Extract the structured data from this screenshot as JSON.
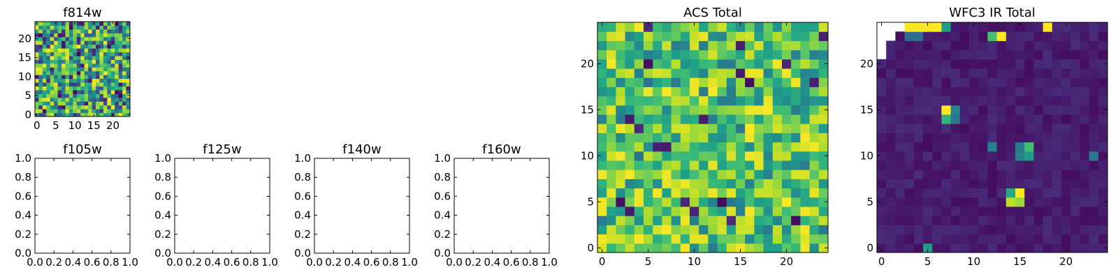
{
  "chart_data": [
    {
      "type": "heatmap",
      "title": "f814w",
      "colormap": "viridis",
      "grid_size": 25,
      "value_range": [
        0,
        1
      ],
      "xticks": [
        "0",
        "5",
        "10",
        "15",
        "20"
      ],
      "yticks": [
        "0",
        "5",
        "10",
        "15",
        "20"
      ],
      "pattern": "uniform random noise"
    },
    {
      "type": "table",
      "title": "f105w",
      "empty": true,
      "xticks": [
        "0.0",
        "0.2",
        "0.4",
        "0.6",
        "0.8",
        "1.0"
      ],
      "yticks": [
        "0.0",
        "0.2",
        "0.4",
        "0.6",
        "0.8",
        "1.0"
      ]
    },
    {
      "type": "table",
      "title": "f125w",
      "empty": true,
      "xticks": [
        "0.0",
        "0.2",
        "0.4",
        "0.6",
        "0.8",
        "1.0"
      ],
      "yticks": [
        "0.0",
        "0.2",
        "0.4",
        "0.6",
        "0.8",
        "1.0"
      ]
    },
    {
      "type": "table",
      "title": "f140w",
      "empty": true,
      "xticks": [
        "0.0",
        "0.2",
        "0.4",
        "0.6",
        "0.8",
        "1.0"
      ],
      "yticks": [
        "0.0",
        "0.2",
        "0.4",
        "0.6",
        "0.8",
        "1.0"
      ]
    },
    {
      "type": "table",
      "title": "f160w",
      "empty": true,
      "xticks": [
        "0.0",
        "0.2",
        "0.4",
        "0.6",
        "0.8",
        "1.0"
      ],
      "yticks": [
        "0.0",
        "0.2",
        "0.4",
        "0.6",
        "0.8",
        "1.0"
      ]
    },
    {
      "type": "heatmap",
      "title": "ACS Total",
      "colormap": "viridis",
      "grid_size": 25,
      "value_range": [
        0,
        1
      ],
      "xticks": [
        "0",
        "5",
        "10",
        "15",
        "20"
      ],
      "yticks": [
        "0",
        "5",
        "10",
        "15",
        "20"
      ],
      "pattern": "uniform random noise, mostly mid-to-high values"
    },
    {
      "type": "heatmap",
      "title": "WFC3 IR Total",
      "colormap": "viridis",
      "grid_size": 25,
      "value_range": [
        0,
        1
      ],
      "xticks": [
        "0",
        "5",
        "10",
        "15",
        "20"
      ],
      "yticks": [
        "0",
        "5",
        "10",
        "15",
        "20"
      ],
      "background_level": 0.08,
      "masked_region": "blank (NaN) wedge in the top-left corner",
      "hot_spots": [
        {
          "x": 7,
          "y": 15,
          "value": 1.0
        },
        {
          "x": 7,
          "y": 14,
          "value": 0.65
        },
        {
          "x": 8,
          "y": 15,
          "value": 0.45
        },
        {
          "x": 8,
          "y": 14,
          "value": 0.4
        },
        {
          "x": 15,
          "y": 6,
          "value": 1.0
        },
        {
          "x": 14,
          "y": 5,
          "value": 0.9
        },
        {
          "x": 14,
          "y": 6,
          "value": 0.6
        },
        {
          "x": 15,
          "y": 5,
          "value": 0.85
        },
        {
          "x": 16,
          "y": 11,
          "value": 0.7
        },
        {
          "x": 16,
          "y": 10,
          "value": 0.55
        },
        {
          "x": 15,
          "y": 11,
          "value": 0.4
        },
        {
          "x": 15,
          "y": 10,
          "value": 0.45
        },
        {
          "x": 12,
          "y": 11,
          "value": 0.45
        },
        {
          "x": 12,
          "y": 23,
          "value": 0.7
        },
        {
          "x": 13,
          "y": 23,
          "value": 1.0
        },
        {
          "x": 23,
          "y": 10,
          "value": 0.4
        },
        {
          "x": 5,
          "y": 0,
          "value": 0.55
        },
        {
          "x": 3,
          "y": 24,
          "value": 1.0
        },
        {
          "x": 4,
          "y": 24,
          "value": 1.0
        },
        {
          "x": 5,
          "y": 24,
          "value": 1.0
        },
        {
          "x": 6,
          "y": 24,
          "value": 1.0
        },
        {
          "x": 7,
          "y": 24,
          "value": 0.55
        },
        {
          "x": 18,
          "y": 24,
          "value": 1.0
        },
        {
          "x": 3,
          "y": 23,
          "value": 0.35
        },
        {
          "x": 4,
          "y": 23,
          "value": 0.35
        }
      ]
    }
  ]
}
